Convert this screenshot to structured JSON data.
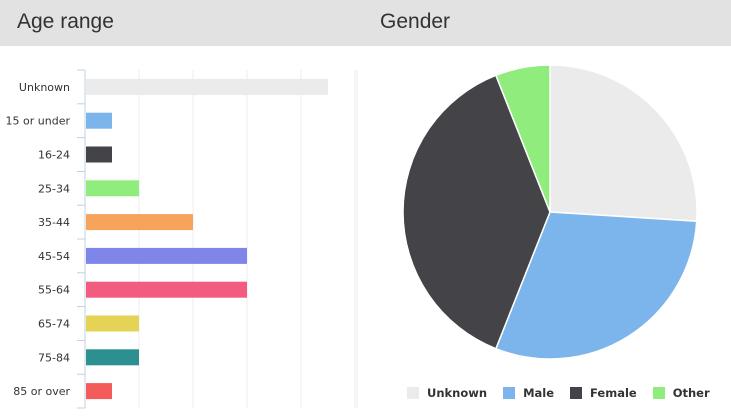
{
  "header": {
    "age_title": "Age range",
    "gender_title": "Gender"
  },
  "chart_data": [
    {
      "type": "bar",
      "orientation": "horizontal",
      "title": "Age range",
      "categories": [
        "Unknown",
        "15 or under",
        "16-24",
        "25-34",
        "35-44",
        "45-54",
        "55-64",
        "65-74",
        "75-84",
        "85 or over"
      ],
      "values": [
        45,
        5,
        5,
        10,
        20,
        30,
        30,
        10,
        10,
        5
      ],
      "colors": [
        "#ebebeb",
        "#7cb5ec",
        "#434348",
        "#90ed7d",
        "#f7a35c",
        "#8085e9",
        "#f15c80",
        "#e4d354",
        "#2b908f",
        "#f45b5b"
      ],
      "xlim": [
        0,
        50
      ],
      "grid": true
    },
    {
      "type": "pie",
      "title": "Gender",
      "categories": [
        "Unknown",
        "Male",
        "Female",
        "Other"
      ],
      "values": [
        26,
        30,
        38,
        6
      ],
      "colors": [
        "#ebebeb",
        "#7cb5ec",
        "#434348",
        "#90ed7d"
      ],
      "legend": "bottom"
    }
  ]
}
